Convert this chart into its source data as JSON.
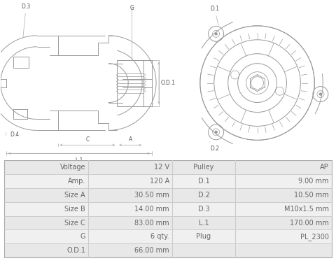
{
  "table_rows": [
    [
      "Voltage",
      "12 V",
      "Pulley",
      "AP"
    ],
    [
      "Amp.",
      "120 A",
      "D.1",
      "9.00 mm"
    ],
    [
      "Size A",
      "30.50 mm",
      "D.2",
      "10.50 mm"
    ],
    [
      "Size B",
      "14.00 mm",
      "D.3",
      "M10x1.5 mm"
    ],
    [
      "Size C",
      "83.00 mm",
      "L.1",
      "170.00 mm"
    ],
    [
      "G",
      "6 qty.",
      "Plug",
      "PL_2300"
    ],
    [
      "O.D.1",
      "66.00 mm",
      "",
      ""
    ]
  ],
  "table_bg_odd": "#e8e8e8",
  "table_bg_even": "#f0f0f0",
  "text_color": "#666666",
  "image_bg": "#ffffff",
  "line_color": "#999999",
  "label_color": "#555555"
}
